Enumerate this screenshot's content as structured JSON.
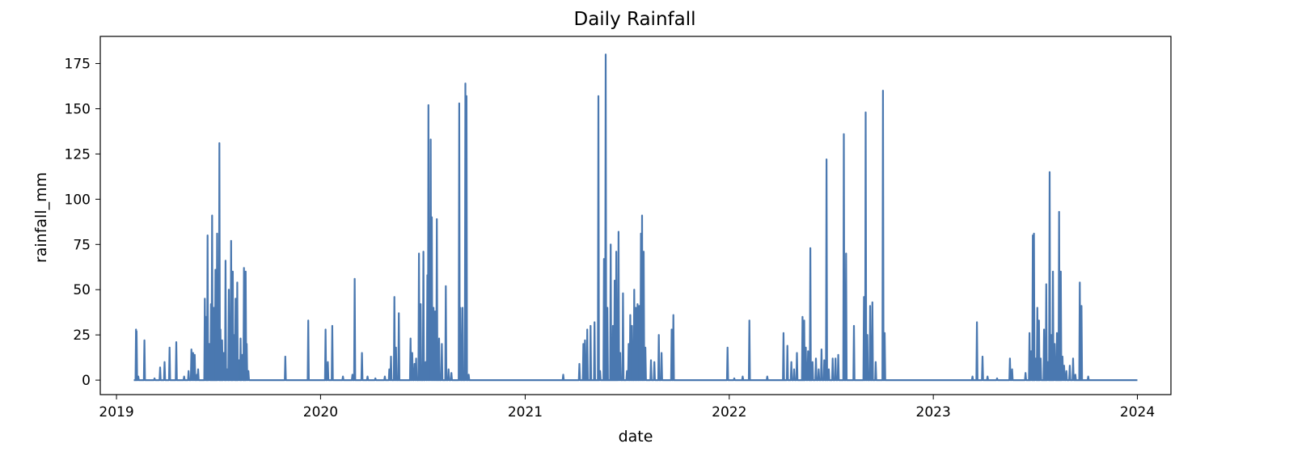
{
  "chart_data": {
    "type": "line",
    "title": "Daily Rainfall",
    "xlabel": "date",
    "ylabel": "rainfall_mm",
    "xlim": [
      "2018-12-03",
      "2024-03-01"
    ],
    "ylim": [
      -8,
      190
    ],
    "x_ticks": [
      {
        "label": "2019",
        "date": "2019-01-01"
      },
      {
        "label": "2020",
        "date": "2020-01-01"
      },
      {
        "label": "2021",
        "date": "2021-01-01"
      },
      {
        "label": "2022",
        "date": "2022-01-01"
      },
      {
        "label": "2023",
        "date": "2023-01-01"
      },
      {
        "label": "2024",
        "date": "2024-01-01"
      }
    ],
    "y_ticks": [
      0,
      25,
      50,
      75,
      100,
      125,
      150,
      175
    ],
    "grid": false,
    "legend": "none",
    "series": [
      {
        "color": "#4a78b0",
        "x_start": "2019-02-01",
        "x_end": "2024-01-01",
        "baseline": 0,
        "points": [
          [
            "2019-02-05",
            28
          ],
          [
            "2019-02-06",
            27
          ],
          [
            "2019-02-09",
            2
          ],
          [
            "2019-02-20",
            22
          ],
          [
            "2019-03-10",
            1
          ],
          [
            "2019-03-20",
            7
          ],
          [
            "2019-03-28",
            10
          ],
          [
            "2019-04-06",
            18
          ],
          [
            "2019-04-18",
            21
          ],
          [
            "2019-05-02",
            2
          ],
          [
            "2019-05-10",
            5
          ],
          [
            "2019-05-15",
            17
          ],
          [
            "2019-05-18",
            15
          ],
          [
            "2019-05-21",
            14
          ],
          [
            "2019-05-25",
            3
          ],
          [
            "2019-05-27",
            6
          ],
          [
            "2019-06-08",
            45
          ],
          [
            "2019-06-10",
            35
          ],
          [
            "2019-06-13",
            80
          ],
          [
            "2019-06-16",
            20
          ],
          [
            "2019-06-19",
            42
          ],
          [
            "2019-06-21",
            91
          ],
          [
            "2019-06-24",
            40
          ],
          [
            "2019-06-27",
            61
          ],
          [
            "2019-06-30",
            81
          ],
          [
            "2019-07-02",
            20
          ],
          [
            "2019-07-04",
            131
          ],
          [
            "2019-07-06",
            28
          ],
          [
            "2019-07-09",
            22
          ],
          [
            "2019-07-12",
            15
          ],
          [
            "2019-07-15",
            66
          ],
          [
            "2019-07-18",
            6
          ],
          [
            "2019-07-21",
            50
          ],
          [
            "2019-07-23",
            25
          ],
          [
            "2019-07-25",
            77
          ],
          [
            "2019-07-28",
            60
          ],
          [
            "2019-07-30",
            25
          ],
          [
            "2019-08-02",
            45
          ],
          [
            "2019-08-05",
            54
          ],
          [
            "2019-08-08",
            11
          ],
          [
            "2019-08-11",
            23
          ],
          [
            "2019-08-14",
            14
          ],
          [
            "2019-08-17",
            62
          ],
          [
            "2019-08-20",
            60
          ],
          [
            "2019-08-22",
            20
          ],
          [
            "2019-08-25",
            5
          ],
          [
            "2019-10-30",
            13
          ],
          [
            "2019-12-10",
            33
          ],
          [
            "2020-01-10",
            28
          ],
          [
            "2020-01-14",
            10
          ],
          [
            "2020-01-22",
            30
          ],
          [
            "2020-02-10",
            2
          ],
          [
            "2020-02-27",
            3
          ],
          [
            "2020-03-02",
            56
          ],
          [
            "2020-03-15",
            15
          ],
          [
            "2020-03-25",
            2
          ],
          [
            "2020-04-08",
            1
          ],
          [
            "2020-04-25",
            2
          ],
          [
            "2020-05-03",
            6
          ],
          [
            "2020-05-06",
            13
          ],
          [
            "2020-05-12",
            46
          ],
          [
            "2020-05-15",
            18
          ],
          [
            "2020-05-20",
            37
          ],
          [
            "2020-06-10",
            23
          ],
          [
            "2020-06-13",
            15
          ],
          [
            "2020-06-17",
            9
          ],
          [
            "2020-06-20",
            12
          ],
          [
            "2020-06-25",
            70
          ],
          [
            "2020-06-28",
            42
          ],
          [
            "2020-07-03",
            71
          ],
          [
            "2020-07-07",
            10
          ],
          [
            "2020-07-10",
            58
          ],
          [
            "2020-07-12",
            152
          ],
          [
            "2020-07-14",
            80
          ],
          [
            "2020-07-16",
            133
          ],
          [
            "2020-07-18",
            90
          ],
          [
            "2020-07-21",
            40
          ],
          [
            "2020-07-24",
            38
          ],
          [
            "2020-07-27",
            89
          ],
          [
            "2020-07-31",
            23
          ],
          [
            "2020-08-05",
            20
          ],
          [
            "2020-08-12",
            52
          ],
          [
            "2020-08-17",
            6
          ],
          [
            "2020-08-22",
            4
          ],
          [
            "2020-09-05",
            153
          ],
          [
            "2020-09-07",
            40
          ],
          [
            "2020-09-11",
            40
          ],
          [
            "2020-09-16",
            164
          ],
          [
            "2020-09-18",
            157
          ],
          [
            "2020-09-22",
            3
          ],
          [
            "2021-03-10",
            3
          ],
          [
            "2021-04-08",
            9
          ],
          [
            "2021-04-15",
            20
          ],
          [
            "2021-04-18",
            22
          ],
          [
            "2021-04-22",
            28
          ],
          [
            "2021-04-28",
            30
          ],
          [
            "2021-05-05",
            32
          ],
          [
            "2021-05-12",
            157
          ],
          [
            "2021-05-15",
            5
          ],
          [
            "2021-05-22",
            67
          ],
          [
            "2021-05-25",
            180
          ],
          [
            "2021-05-28",
            40
          ],
          [
            "2021-06-03",
            75
          ],
          [
            "2021-06-07",
            30
          ],
          [
            "2021-06-10",
            55
          ],
          [
            "2021-06-13",
            71
          ],
          [
            "2021-06-17",
            82
          ],
          [
            "2021-06-20",
            15
          ],
          [
            "2021-06-25",
            48
          ],
          [
            "2021-07-02",
            5
          ],
          [
            "2021-07-05",
            20
          ],
          [
            "2021-07-08",
            36
          ],
          [
            "2021-07-11",
            30
          ],
          [
            "2021-07-15",
            50
          ],
          [
            "2021-07-18",
            40
          ],
          [
            "2021-07-21",
            42
          ],
          [
            "2021-07-24",
            41
          ],
          [
            "2021-07-27",
            81
          ],
          [
            "2021-07-29",
            91
          ],
          [
            "2021-08-01",
            71
          ],
          [
            "2021-08-04",
            18
          ],
          [
            "2021-08-14",
            11
          ],
          [
            "2021-08-20",
            10
          ],
          [
            "2021-08-28",
            25
          ],
          [
            "2021-09-02",
            15
          ],
          [
            "2021-09-20",
            28
          ],
          [
            "2021-09-23",
            36
          ],
          [
            "2021-12-29",
            18
          ],
          [
            "2022-01-10",
            1
          ],
          [
            "2022-01-25",
            2
          ],
          [
            "2022-02-06",
            33
          ],
          [
            "2022-03-10",
            2
          ],
          [
            "2022-04-08",
            26
          ],
          [
            "2022-04-15",
            19
          ],
          [
            "2022-04-22",
            10
          ],
          [
            "2022-04-27",
            6
          ],
          [
            "2022-05-02",
            15
          ],
          [
            "2022-05-12",
            35
          ],
          [
            "2022-05-15",
            33
          ],
          [
            "2022-05-18",
            18
          ],
          [
            "2022-05-22",
            16
          ],
          [
            "2022-05-26",
            73
          ],
          [
            "2022-05-30",
            10
          ],
          [
            "2022-06-05",
            12
          ],
          [
            "2022-06-10",
            6
          ],
          [
            "2022-06-15",
            17
          ],
          [
            "2022-06-20",
            11
          ],
          [
            "2022-06-24",
            122
          ],
          [
            "2022-06-28",
            6
          ],
          [
            "2022-07-05",
            12
          ],
          [
            "2022-07-10",
            12
          ],
          [
            "2022-07-15",
            14
          ],
          [
            "2022-07-25",
            136
          ],
          [
            "2022-07-29",
            70
          ],
          [
            "2022-08-12",
            30
          ],
          [
            "2022-08-30",
            46
          ],
          [
            "2022-09-02",
            148
          ],
          [
            "2022-09-05",
            25
          ],
          [
            "2022-09-10",
            41
          ],
          [
            "2022-09-14",
            43
          ],
          [
            "2022-09-20",
            10
          ],
          [
            "2022-10-03",
            160
          ],
          [
            "2022-10-06",
            26
          ],
          [
            "2023-03-12",
            2
          ],
          [
            "2023-03-20",
            32
          ],
          [
            "2023-03-30",
            13
          ],
          [
            "2023-04-08",
            2
          ],
          [
            "2023-04-25",
            1
          ],
          [
            "2023-05-18",
            12
          ],
          [
            "2023-05-22",
            6
          ],
          [
            "2023-06-15",
            4
          ],
          [
            "2023-06-22",
            26
          ],
          [
            "2023-06-25",
            16
          ],
          [
            "2023-06-28",
            80
          ],
          [
            "2023-06-30",
            81
          ],
          [
            "2023-07-03",
            12
          ],
          [
            "2023-07-06",
            40
          ],
          [
            "2023-07-09",
            33
          ],
          [
            "2023-07-12",
            12
          ],
          [
            "2023-07-18",
            28
          ],
          [
            "2023-07-22",
            53
          ],
          [
            "2023-07-25",
            10
          ],
          [
            "2023-07-28",
            115
          ],
          [
            "2023-07-31",
            25
          ],
          [
            "2023-08-03",
            60
          ],
          [
            "2023-08-06",
            20
          ],
          [
            "2023-08-10",
            26
          ],
          [
            "2023-08-14",
            93
          ],
          [
            "2023-08-17",
            60
          ],
          [
            "2023-08-20",
            13
          ],
          [
            "2023-08-23",
            8
          ],
          [
            "2023-08-27",
            5
          ],
          [
            "2023-09-02",
            8
          ],
          [
            "2023-09-08",
            12
          ],
          [
            "2023-09-12",
            3
          ],
          [
            "2023-09-20",
            54
          ],
          [
            "2023-09-23",
            41
          ],
          [
            "2023-10-05",
            2
          ]
        ]
      }
    ]
  }
}
